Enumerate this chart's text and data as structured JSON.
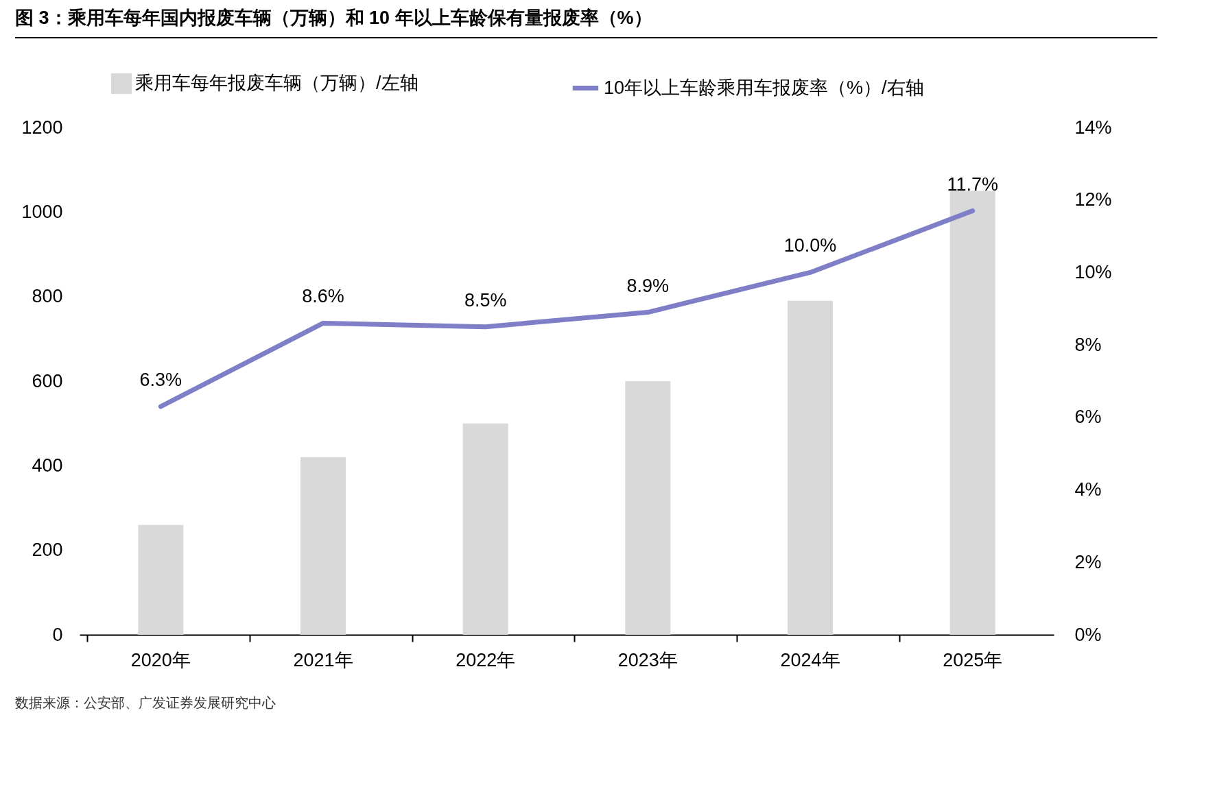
{
  "chart_data": {
    "type": "bar",
    "title": "图 3：乘用车每年国内报废车辆（万辆）和 10 年以上车龄保有量报废率（%）",
    "categories": [
      "2020年",
      "2021年",
      "2022年",
      "2023年",
      "2024年",
      "2025年"
    ],
    "series": [
      {
        "name": "乘用车每年报废车辆（万辆）/左轴",
        "color": "#d9d9d9",
        "values": [
          260,
          420,
          500,
          600,
          790,
          1050
        ]
      },
      {
        "name": "10年以上车龄乘用车报废率（%）/右轴",
        "type": "line",
        "axis": "y2",
        "color": "#7f7fc8",
        "values": [
          6.3,
          8.6,
          8.5,
          8.9,
          10.0,
          11.7
        ],
        "value_labels": [
          "6.3%",
          "8.6%",
          "8.5%",
          "8.9%",
          "10.0%",
          "11.7%"
        ]
      }
    ],
    "ylim": [
      0,
      1200
    ],
    "yticks": [
      0,
      200,
      400,
      600,
      800,
      1000,
      1200
    ],
    "y2lim": [
      0,
      14
    ],
    "y2ticks": [
      {
        "value": 0,
        "label": "0%"
      },
      {
        "value": 2,
        "label": "2%"
      },
      {
        "value": 4,
        "label": "4%"
      },
      {
        "value": 6,
        "label": "6%"
      },
      {
        "value": 8,
        "label": "8%"
      },
      {
        "value": 10,
        "label": "10%"
      },
      {
        "value": 12,
        "label": "12%"
      },
      {
        "value": 14,
        "label": "14%"
      }
    ],
    "legend": "top",
    "grid": false,
    "annotations": [
      "数据来源：公安部、广发证券发展研究中心"
    ]
  }
}
